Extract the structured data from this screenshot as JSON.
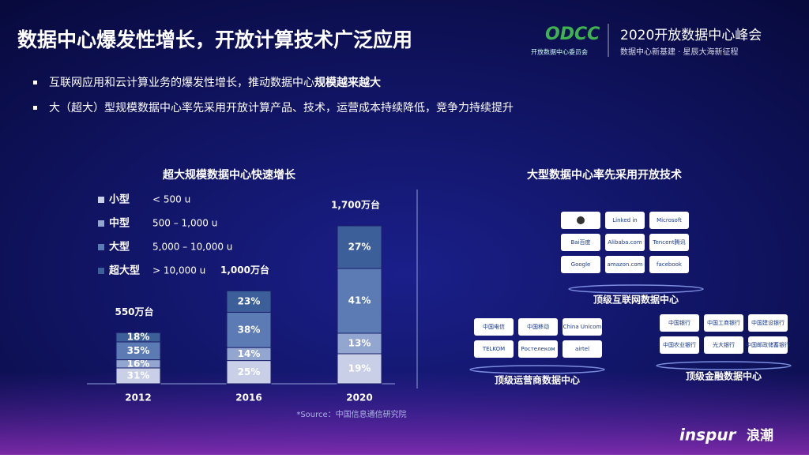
{
  "header": {
    "title": "数据中心爆发性增长，开放计算技术广泛应用",
    "logo": "ODCC",
    "logo_sub": "开放数据中心委员会",
    "event": "2020开放数据中心峰会",
    "event_sub": "数据中心新基建 · 星辰大海新征程"
  },
  "bullets": [
    {
      "text": "互联网应用和云计算业务的爆发性增长，推动数据中心",
      "bold": "规模越来越大"
    },
    {
      "text": "大（超大）型规模数据中心率先采用开放计算产品、技术，运营成本持续降低，竞争力持续提升"
    }
  ],
  "chart_data": {
    "type": "stacked_bar",
    "title": "超大规模数据中心快速增长",
    "categories": [
      "2012",
      "2016",
      "2020"
    ],
    "series": [
      {
        "name": "小型",
        "range": "< 500 u",
        "color": "#c9cfe6",
        "values": [
          31,
          25,
          19
        ],
        "value_labels": [
          "31%",
          "25%",
          "19%"
        ]
      },
      {
        "name": "中型",
        "range": "500 – 1,000 u",
        "color": "#93a6cf",
        "values": [
          16,
          14,
          13
        ],
        "value_labels": [
          "16%",
          "14%",
          "13%"
        ]
      },
      {
        "name": "大型",
        "range": "5,000 – 10,000 u",
        "color": "#5c7ab3",
        "values": [
          35,
          38,
          41
        ],
        "value_labels": [
          "35%",
          "38%",
          "41%"
        ]
      },
      {
        "name": "超大型",
        "range": "> 10,000 u",
        "color": "#3d5f99",
        "values": [
          18,
          23,
          27
        ],
        "value_labels": [
          "18%",
          "23%",
          "27%"
        ]
      }
    ],
    "totals": {
      "values": [
        550,
        1000,
        1700
      ],
      "value_labels": [
        "550万台",
        "1,000万台",
        "1,700万台"
      ]
    }
  },
  "source": "*Source：中国信息通信研究院",
  "panel": {
    "title": "大型数据中心率先采用开放技术",
    "groups": [
      {
        "label": "顶级互联网数据中心",
        "logos": [
          "",
          "Linked in",
          "Microsoft",
          "Bai百度",
          "Alibaba.com",
          "Tencent腾讯",
          "Google",
          "amazon.com",
          "facebook"
        ]
      },
      {
        "label": "顶级运营商数据中心",
        "logos": [
          "中国电信",
          "中国移动",
          "China Unicom",
          "TELKOM",
          "Ростелеком",
          "airtel"
        ]
      },
      {
        "label": "顶级金融数据中心",
        "logos": [
          "中国银行",
          "中国工商银行",
          "中国建设银行",
          "中国农业银行",
          "光大银行",
          "中国邮政储蓄银行"
        ]
      }
    ]
  },
  "footer": {
    "brand": "inspur",
    "brand_cn": "浪潮"
  }
}
